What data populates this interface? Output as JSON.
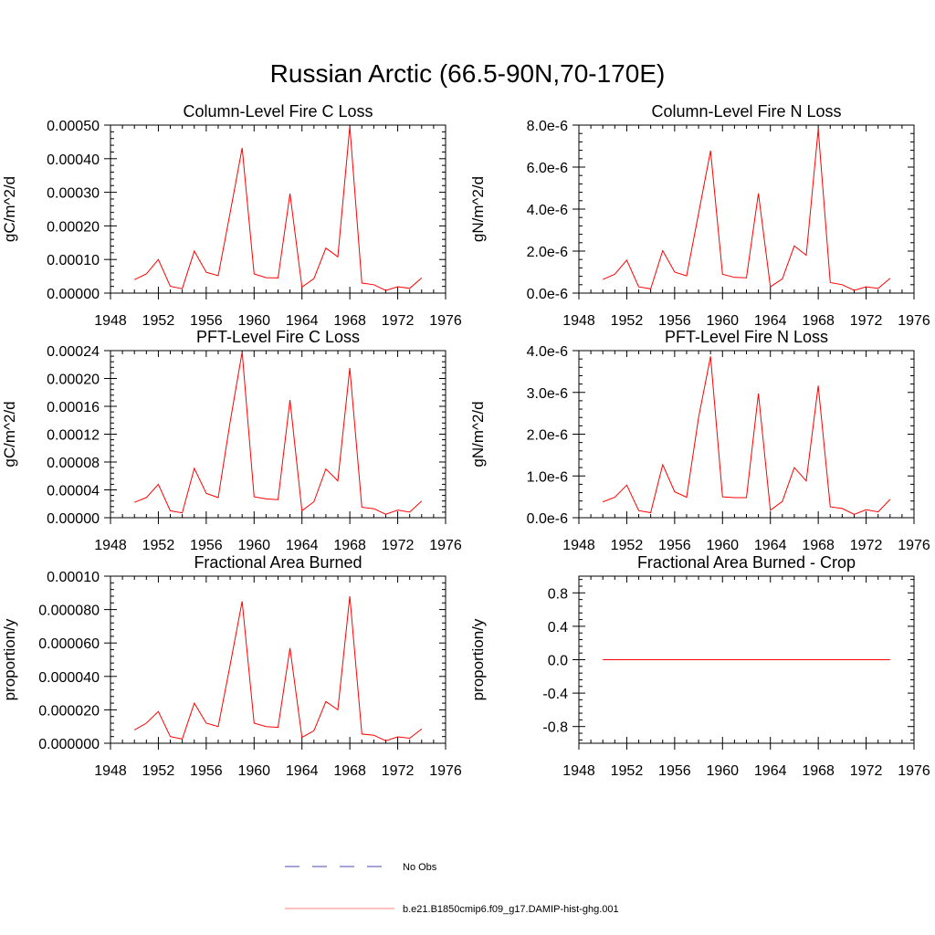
{
  "figure": {
    "title": "Russian Arctic (66.5-90N,70-170E)",
    "legend": [
      {
        "label": "No Obs",
        "color": "#4a4ab0",
        "dash": true
      },
      {
        "label": "b.e21.B1850cmip6.f09_g17.DAMIP-hist-ghg.001",
        "color": "#ff0000",
        "dash": false
      }
    ]
  },
  "chart_data": [
    {
      "type": "line",
      "title": "Column-Level Fire C Loss",
      "ylabel": "gC/m^2/d",
      "xlim": [
        1948,
        1976
      ],
      "ylim": [
        0,
        0.0005
      ],
      "xticks": [
        1948,
        1952,
        1956,
        1960,
        1964,
        1968,
        1972,
        1976
      ],
      "yticks": [
        0,
        0.0001,
        0.0002,
        0.0003,
        0.0004,
        0.0005
      ],
      "yticklabels": [
        "0.00000",
        "0.00010",
        "0.00020",
        "0.00030",
        "0.00040",
        "0.00050"
      ],
      "series": [
        {
          "color": "#ff0000",
          "x": [
            1950,
            1951,
            1952,
            1953,
            1954,
            1955,
            1956,
            1957,
            1958,
            1959,
            1960,
            1961,
            1962,
            1963,
            1964,
            1965,
            1966,
            1967,
            1968,
            1969,
            1970,
            1971,
            1972,
            1973,
            1974
          ],
          "y": [
            4e-05,
            5.7e-05,
            0.0001,
            2e-05,
            1.3e-05,
            0.000125,
            6.2e-05,
            5.2e-05,
            0.00024,
            0.000432,
            5.7e-05,
            4.6e-05,
            4.5e-05,
            0.000296,
            1.8e-05,
            4.3e-05,
            0.000134,
            0.000108,
            0.000496,
            3e-05,
            2.5e-05,
            8e-06,
            1.9e-05,
            1.4e-05,
            4.5e-05
          ]
        }
      ]
    },
    {
      "type": "line",
      "title": "Column-Level Fire N Loss",
      "ylabel": "gN/m^2/d",
      "xlim": [
        1948,
        1976
      ],
      "ylim": [
        0,
        8e-06
      ],
      "xticks": [
        1948,
        1952,
        1956,
        1960,
        1964,
        1968,
        1972,
        1976
      ],
      "yticks": [
        0,
        2e-06,
        4e-06,
        6e-06,
        8e-06
      ],
      "yticklabels": [
        "0.0e-6",
        "2.0e-6",
        "4.0e-6",
        "6.0e-6",
        "8.0e-6"
      ],
      "series": [
        {
          "color": "#ff0000",
          "x": [
            1950,
            1951,
            1952,
            1953,
            1954,
            1955,
            1956,
            1957,
            1958,
            1959,
            1960,
            1961,
            1962,
            1963,
            1964,
            1965,
            1966,
            1967,
            1968,
            1969,
            1970,
            1971,
            1972,
            1973,
            1974
          ],
          "y": [
            6.5e-07,
            9e-07,
            1.57e-06,
            3e-07,
            2e-07,
            2.02e-06,
            1e-06,
            8.2e-07,
            3.8e-06,
            6.78e-06,
            9e-07,
            7.5e-07,
            7.3e-07,
            4.75e-06,
            3e-07,
            6.8e-07,
            2.25e-06,
            1.8e-06,
            7.8e-06,
            5e-07,
            4e-07,
            1.3e-07,
            3e-07,
            2.2e-07,
            7e-07
          ]
        }
      ]
    },
    {
      "type": "line",
      "title": "PFT-Level Fire C Loss",
      "ylabel": "gC/m^2/d",
      "xlim": [
        1948,
        1976
      ],
      "ylim": [
        0,
        0.00024
      ],
      "xticks": [
        1948,
        1952,
        1956,
        1960,
        1964,
        1968,
        1972,
        1976
      ],
      "yticks": [
        0,
        4e-05,
        8e-05,
        0.00012,
        0.00016,
        0.0002,
        0.00024
      ],
      "yticklabels": [
        "0.00000",
        "0.00004",
        "0.00008",
        "0.00012",
        "0.00016",
        "0.00020",
        "0.00024"
      ],
      "series": [
        {
          "color": "#ff0000",
          "x": [
            1950,
            1951,
            1952,
            1953,
            1954,
            1955,
            1956,
            1957,
            1958,
            1959,
            1960,
            1961,
            1962,
            1963,
            1964,
            1965,
            1966,
            1967,
            1968,
            1969,
            1970,
            1971,
            1972,
            1973,
            1974
          ],
          "y": [
            2.2e-05,
            2.9e-05,
            4.8e-05,
            1e-05,
            7e-06,
            7.1e-05,
            3.5e-05,
            2.9e-05,
            0.000138,
            0.000238,
            3e-05,
            2.7e-05,
            2.6e-05,
            0.000169,
            1e-05,
            2.3e-05,
            7e-05,
            5.3e-05,
            0.000215,
            1.5e-05,
            1.3e-05,
            5e-06,
            1.1e-05,
            8e-06,
            2.4e-05
          ]
        }
      ]
    },
    {
      "type": "line",
      "title": "PFT-Level Fire N Loss",
      "ylabel": "gN/m^2/d",
      "xlim": [
        1948,
        1976
      ],
      "ylim": [
        0,
        4e-06
      ],
      "xticks": [
        1948,
        1952,
        1956,
        1960,
        1964,
        1968,
        1972,
        1976
      ],
      "yticks": [
        0,
        1e-06,
        2e-06,
        3e-06,
        4e-06
      ],
      "yticklabels": [
        "0.0e-6",
        "1.0e-6",
        "2.0e-6",
        "3.0e-6",
        "4.0e-6"
      ],
      "series": [
        {
          "color": "#ff0000",
          "x": [
            1950,
            1951,
            1952,
            1953,
            1954,
            1955,
            1956,
            1957,
            1958,
            1959,
            1960,
            1961,
            1962,
            1963,
            1964,
            1965,
            1966,
            1967,
            1968,
            1969,
            1970,
            1971,
            1972,
            1973,
            1974
          ],
          "y": [
            3.8e-07,
            4.9e-07,
            7.8e-07,
            1.7e-07,
            1.2e-07,
            1.27e-06,
            6.2e-07,
            4.9e-07,
            2.4e-06,
            3.86e-06,
            5e-07,
            4.8e-07,
            4.8e-07,
            2.97e-06,
            1.8e-07,
            3.9e-07,
            1.2e-06,
            8.8e-07,
            3.16e-06,
            2.6e-07,
            2.2e-07,
            8e-08,
            1.9e-07,
            1.4e-07,
            4.4e-07
          ]
        }
      ]
    },
    {
      "type": "line",
      "title": "Fractional Area Burned",
      "ylabel": "proportion/y",
      "xlim": [
        1948,
        1976
      ],
      "ylim": [
        0,
        0.0001
      ],
      "xticks": [
        1948,
        1952,
        1956,
        1960,
        1964,
        1968,
        1972,
        1976
      ],
      "yticks": [
        0,
        2e-05,
        4e-05,
        6e-05,
        8e-05,
        0.0001
      ],
      "yticklabels": [
        "0.000000",
        "0.000020",
        "0.000040",
        "0.000060",
        "0.000080",
        "0.00010"
      ],
      "series": [
        {
          "color": "#ff0000",
          "x": [
            1950,
            1951,
            1952,
            1953,
            1954,
            1955,
            1956,
            1957,
            1958,
            1959,
            1960,
            1961,
            1962,
            1963,
            1964,
            1965,
            1966,
            1967,
            1968,
            1969,
            1970,
            1971,
            1972,
            1973,
            1974
          ],
          "y": [
            8e-06,
            1.2e-05,
            1.9e-05,
            4e-06,
            2.5e-06,
            2.4e-05,
            1.2e-05,
            1e-05,
            4.7e-05,
            8.5e-05,
            1.2e-05,
            1e-05,
            9.5e-06,
            5.7e-05,
            3.5e-06,
            7.5e-06,
            2.5e-05,
            2e-05,
            8.8e-05,
            5.5e-06,
            4.8e-06,
            1.5e-06,
            3.8e-06,
            3e-06,
            8.5e-06
          ]
        }
      ]
    },
    {
      "type": "line",
      "title": "Fractional Area Burned - Crop",
      "ylabel": "proportion/y",
      "xlim": [
        1948,
        1976
      ],
      "ylim": [
        -1,
        1
      ],
      "xticks": [
        1948,
        1952,
        1956,
        1960,
        1964,
        1968,
        1972,
        1976
      ],
      "yticks": [
        -0.8,
        -0.4,
        0,
        0.4,
        0.8
      ],
      "yticklabels": [
        "-0.8",
        "-0.4",
        "0.0",
        "0.4",
        "0.8"
      ],
      "series": [
        {
          "color": "#ff0000",
          "x": [
            1950,
            1951,
            1952,
            1953,
            1954,
            1955,
            1956,
            1957,
            1958,
            1959,
            1960,
            1961,
            1962,
            1963,
            1964,
            1965,
            1966,
            1967,
            1968,
            1969,
            1970,
            1971,
            1972,
            1973,
            1974
          ],
          "y": [
            0,
            0,
            0,
            0,
            0,
            0,
            0,
            0,
            0,
            0,
            0,
            0,
            0,
            0,
            0,
            0,
            0,
            0,
            0,
            0,
            0,
            0,
            0,
            0,
            0
          ]
        }
      ]
    }
  ]
}
